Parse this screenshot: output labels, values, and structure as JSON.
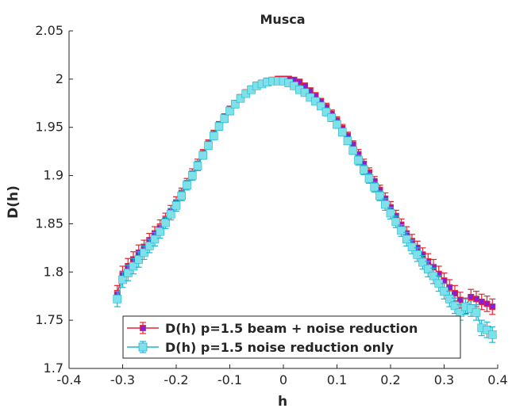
{
  "chart_data": {
    "type": "scatter",
    "title": "Musca",
    "xlabel": "h",
    "ylabel": "D(h)",
    "xlim": [
      -0.4,
      0.4
    ],
    "ylim": [
      1.7,
      2.05
    ],
    "xticks": [
      "-0.4",
      "-0.3",
      "-0.2",
      "-0.1",
      "0",
      "0.1",
      "0.2",
      "0.3",
      "0.4"
    ],
    "yticks": [
      "1.7",
      "1.75",
      "1.8",
      "1.85",
      "1.9",
      "1.95",
      "2",
      "2.05"
    ],
    "legend_position": "bottom-right",
    "grid": false,
    "series": [
      {
        "name": "D(h) p=1.5 beam + noise reduction",
        "line_color": "#e8202e",
        "marker_color": "#8b1ed1",
        "marker": "square",
        "points": [
          {
            "x": -0.31,
            "y": 1.778,
            "err": 0.008
          },
          {
            "x": -0.3,
            "y": 1.798,
            "err": 0.008
          },
          {
            "x": -0.29,
            "y": 1.806,
            "err": 0.008
          },
          {
            "x": -0.28,
            "y": 1.813,
            "err": 0.008
          },
          {
            "x": -0.27,
            "y": 1.82,
            "err": 0.008
          },
          {
            "x": -0.26,
            "y": 1.826,
            "err": 0.007
          },
          {
            "x": -0.25,
            "y": 1.833,
            "err": 0.007
          },
          {
            "x": -0.24,
            "y": 1.84,
            "err": 0.007
          },
          {
            "x": -0.23,
            "y": 1.847,
            "err": 0.007
          },
          {
            "x": -0.22,
            "y": 1.855,
            "err": 0.006
          },
          {
            "x": -0.21,
            "y": 1.863,
            "err": 0.006
          },
          {
            "x": -0.2,
            "y": 1.872,
            "err": 0.006
          },
          {
            "x": -0.19,
            "y": 1.882,
            "err": 0.005
          },
          {
            "x": -0.18,
            "y": 1.892,
            "err": 0.005
          },
          {
            "x": -0.17,
            "y": 1.902,
            "err": 0.005
          },
          {
            "x": -0.16,
            "y": 1.912,
            "err": 0.005
          },
          {
            "x": -0.15,
            "y": 1.923,
            "err": 0.004
          },
          {
            "x": -0.14,
            "y": 1.933,
            "err": 0.004
          },
          {
            "x": -0.13,
            "y": 1.943,
            "err": 0.004
          },
          {
            "x": -0.12,
            "y": 1.952,
            "err": 0.004
          },
          {
            "x": -0.11,
            "y": 1.96,
            "err": 0.004
          },
          {
            "x": -0.1,
            "y": 1.968,
            "err": 0.004
          },
          {
            "x": -0.09,
            "y": 1.975,
            "err": 0.003
          },
          {
            "x": -0.08,
            "y": 1.981,
            "err": 0.003
          },
          {
            "x": -0.07,
            "y": 1.986,
            "err": 0.003
          },
          {
            "x": -0.06,
            "y": 1.99,
            "err": 0.003
          },
          {
            "x": -0.05,
            "y": 1.994,
            "err": 0.003
          },
          {
            "x": -0.04,
            "y": 1.996,
            "err": 0.003
          },
          {
            "x": -0.03,
            "y": 1.998,
            "err": 0.003
          },
          {
            "x": -0.02,
            "y": 1.999,
            "err": 0.003
          },
          {
            "x": -0.01,
            "y": 2.0,
            "err": 0.003
          },
          {
            "x": 0.0,
            "y": 2.0,
            "err": 0.003
          },
          {
            "x": 0.01,
            "y": 2.0,
            "err": 0.003
          },
          {
            "x": 0.02,
            "y": 1.999,
            "err": 0.003
          },
          {
            "x": 0.03,
            "y": 1.997,
            "err": 0.003
          },
          {
            "x": 0.04,
            "y": 1.993,
            "err": 0.003
          },
          {
            "x": 0.05,
            "y": 1.988,
            "err": 0.003
          },
          {
            "x": 0.06,
            "y": 1.983,
            "err": 0.003
          },
          {
            "x": 0.07,
            "y": 1.977,
            "err": 0.003
          },
          {
            "x": 0.08,
            "y": 1.971,
            "err": 0.004
          },
          {
            "x": 0.09,
            "y": 1.964,
            "err": 0.004
          },
          {
            "x": 0.1,
            "y": 1.957,
            "err": 0.004
          },
          {
            "x": 0.11,
            "y": 1.949,
            "err": 0.004
          },
          {
            "x": 0.12,
            "y": 1.941,
            "err": 0.004
          },
          {
            "x": 0.13,
            "y": 1.932,
            "err": 0.004
          },
          {
            "x": 0.14,
            "y": 1.922,
            "err": 0.005
          },
          {
            "x": 0.15,
            "y": 1.912,
            "err": 0.005
          },
          {
            "x": 0.16,
            "y": 1.903,
            "err": 0.005
          },
          {
            "x": 0.17,
            "y": 1.894,
            "err": 0.005
          },
          {
            "x": 0.18,
            "y": 1.885,
            "err": 0.005
          },
          {
            "x": 0.19,
            "y": 1.876,
            "err": 0.006
          },
          {
            "x": 0.2,
            "y": 1.867,
            "err": 0.006
          },
          {
            "x": 0.21,
            "y": 1.858,
            "err": 0.006
          },
          {
            "x": 0.22,
            "y": 1.849,
            "err": 0.006
          },
          {
            "x": 0.23,
            "y": 1.84,
            "err": 0.007
          },
          {
            "x": 0.24,
            "y": 1.832,
            "err": 0.007
          },
          {
            "x": 0.25,
            "y": 1.825,
            "err": 0.007
          },
          {
            "x": 0.26,
            "y": 1.818,
            "err": 0.007
          },
          {
            "x": 0.27,
            "y": 1.811,
            "err": 0.008
          },
          {
            "x": 0.28,
            "y": 1.805,
            "err": 0.008
          },
          {
            "x": 0.29,
            "y": 1.798,
            "err": 0.008
          },
          {
            "x": 0.3,
            "y": 1.791,
            "err": 0.008
          },
          {
            "x": 0.31,
            "y": 1.784,
            "err": 0.008
          },
          {
            "x": 0.32,
            "y": 1.778,
            "err": 0.008
          },
          {
            "x": 0.33,
            "y": 1.771,
            "err": 0.008
          },
          {
            "x": 0.34,
            "y": 1.765,
            "err": 0.008
          },
          {
            "x": 0.35,
            "y": 1.774,
            "err": 0.008
          },
          {
            "x": 0.36,
            "y": 1.772,
            "err": 0.008
          },
          {
            "x": 0.37,
            "y": 1.769,
            "err": 0.008
          },
          {
            "x": 0.38,
            "y": 1.767,
            "err": 0.008
          },
          {
            "x": 0.39,
            "y": 1.764,
            "err": 0.008
          }
        ]
      },
      {
        "name": "D(h) p=1.5 noise reduction only",
        "line_color": "#1fb5cf",
        "marker_color": "#7ee0e8",
        "marker": "square",
        "points": [
          {
            "x": -0.31,
            "y": 1.772,
            "err": 0.008
          },
          {
            "x": -0.3,
            "y": 1.792,
            "err": 0.008
          },
          {
            "x": -0.29,
            "y": 1.799,
            "err": 0.008
          },
          {
            "x": -0.28,
            "y": 1.806,
            "err": 0.008
          },
          {
            "x": -0.27,
            "y": 1.813,
            "err": 0.008
          },
          {
            "x": -0.26,
            "y": 1.82,
            "err": 0.007
          },
          {
            "x": -0.25,
            "y": 1.827,
            "err": 0.007
          },
          {
            "x": -0.24,
            "y": 1.834,
            "err": 0.007
          },
          {
            "x": -0.23,
            "y": 1.842,
            "err": 0.007
          },
          {
            "x": -0.22,
            "y": 1.851,
            "err": 0.006
          },
          {
            "x": -0.21,
            "y": 1.86,
            "err": 0.006
          },
          {
            "x": -0.2,
            "y": 1.869,
            "err": 0.006
          },
          {
            "x": -0.19,
            "y": 1.879,
            "err": 0.005
          },
          {
            "x": -0.18,
            "y": 1.89,
            "err": 0.005
          },
          {
            "x": -0.17,
            "y": 1.9,
            "err": 0.005
          },
          {
            "x": -0.16,
            "y": 1.91,
            "err": 0.005
          },
          {
            "x": -0.15,
            "y": 1.921,
            "err": 0.004
          },
          {
            "x": -0.14,
            "y": 1.931,
            "err": 0.004
          },
          {
            "x": -0.13,
            "y": 1.941,
            "err": 0.004
          },
          {
            "x": -0.12,
            "y": 1.951,
            "err": 0.004
          },
          {
            "x": -0.11,
            "y": 1.959,
            "err": 0.004
          },
          {
            "x": -0.1,
            "y": 1.967,
            "err": 0.004
          },
          {
            "x": -0.09,
            "y": 1.974,
            "err": 0.003
          },
          {
            "x": -0.08,
            "y": 1.98,
            "err": 0.003
          },
          {
            "x": -0.07,
            "y": 1.985,
            "err": 0.003
          },
          {
            "x": -0.06,
            "y": 1.989,
            "err": 0.003
          },
          {
            "x": -0.05,
            "y": 1.993,
            "err": 0.003
          },
          {
            "x": -0.04,
            "y": 1.995,
            "err": 0.003
          },
          {
            "x": -0.03,
            "y": 1.997,
            "err": 0.003
          },
          {
            "x": -0.02,
            "y": 1.998,
            "err": 0.003
          },
          {
            "x": -0.01,
            "y": 1.998,
            "err": 0.003
          },
          {
            "x": 0.0,
            "y": 1.998,
            "err": 0.003
          },
          {
            "x": 0.01,
            "y": 1.996,
            "err": 0.003
          },
          {
            "x": 0.02,
            "y": 1.993,
            "err": 0.003
          },
          {
            "x": 0.03,
            "y": 1.989,
            "err": 0.003
          },
          {
            "x": 0.04,
            "y": 1.986,
            "err": 0.003
          },
          {
            "x": 0.05,
            "y": 1.981,
            "err": 0.003
          },
          {
            "x": 0.06,
            "y": 1.977,
            "err": 0.003
          },
          {
            "x": 0.07,
            "y": 1.972,
            "err": 0.003
          },
          {
            "x": 0.08,
            "y": 1.966,
            "err": 0.004
          },
          {
            "x": 0.09,
            "y": 1.96,
            "err": 0.004
          },
          {
            "x": 0.1,
            "y": 1.953,
            "err": 0.004
          },
          {
            "x": 0.11,
            "y": 1.945,
            "err": 0.004
          },
          {
            "x": 0.12,
            "y": 1.936,
            "err": 0.004
          },
          {
            "x": 0.13,
            "y": 1.926,
            "err": 0.004
          },
          {
            "x": 0.14,
            "y": 1.916,
            "err": 0.005
          },
          {
            "x": 0.15,
            "y": 1.906,
            "err": 0.005
          },
          {
            "x": 0.16,
            "y": 1.897,
            "err": 0.005
          },
          {
            "x": 0.17,
            "y": 1.888,
            "err": 0.005
          },
          {
            "x": 0.18,
            "y": 1.879,
            "err": 0.005
          },
          {
            "x": 0.19,
            "y": 1.87,
            "err": 0.006
          },
          {
            "x": 0.2,
            "y": 1.861,
            "err": 0.006
          },
          {
            "x": 0.21,
            "y": 1.852,
            "err": 0.006
          },
          {
            "x": 0.22,
            "y": 1.843,
            "err": 0.006
          },
          {
            "x": 0.23,
            "y": 1.834,
            "err": 0.007
          },
          {
            "x": 0.24,
            "y": 1.826,
            "err": 0.007
          },
          {
            "x": 0.25,
            "y": 1.818,
            "err": 0.007
          },
          {
            "x": 0.26,
            "y": 1.81,
            "err": 0.007
          },
          {
            "x": 0.27,
            "y": 1.803,
            "err": 0.008
          },
          {
            "x": 0.28,
            "y": 1.796,
            "err": 0.008
          },
          {
            "x": 0.29,
            "y": 1.788,
            "err": 0.008
          },
          {
            "x": 0.3,
            "y": 1.78,
            "err": 0.008
          },
          {
            "x": 0.31,
            "y": 1.772,
            "err": 0.008
          },
          {
            "x": 0.32,
            "y": 1.765,
            "err": 0.008
          },
          {
            "x": 0.33,
            "y": 1.758,
            "err": 0.008
          },
          {
            "x": 0.34,
            "y": 1.764,
            "err": 0.008
          },
          {
            "x": 0.35,
            "y": 1.762,
            "err": 0.008
          },
          {
            "x": 0.36,
            "y": 1.758,
            "err": 0.008
          },
          {
            "x": 0.37,
            "y": 1.742,
            "err": 0.008
          },
          {
            "x": 0.38,
            "y": 1.74,
            "err": 0.008
          },
          {
            "x": 0.39,
            "y": 1.735,
            "err": 0.008
          }
        ]
      }
    ]
  }
}
